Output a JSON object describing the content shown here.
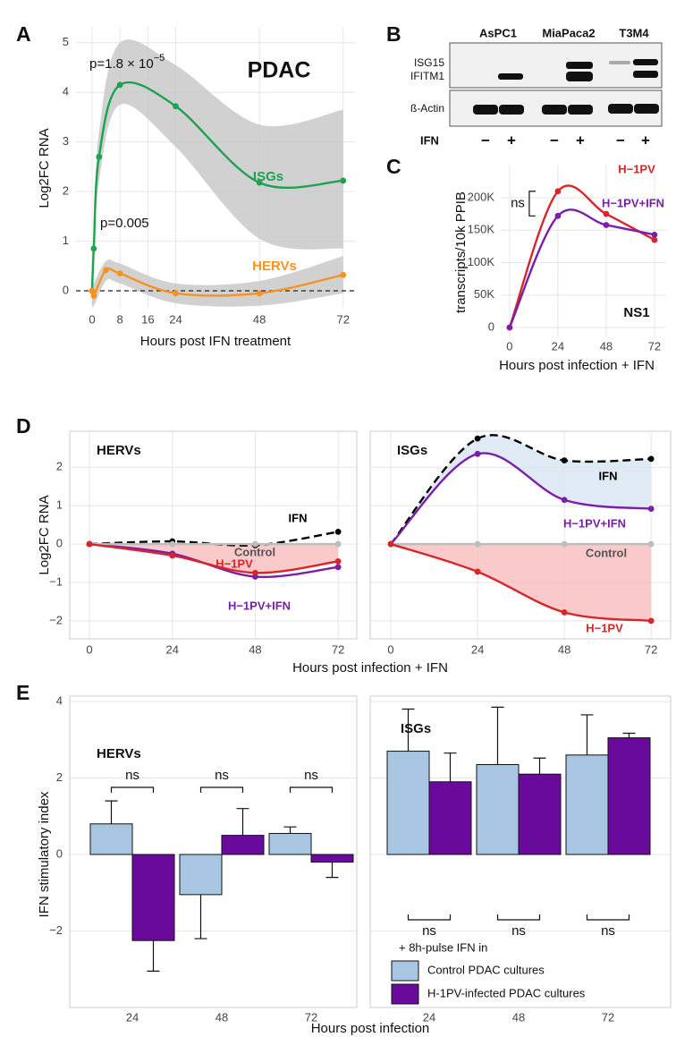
{
  "blot": {
    "panel": "B",
    "cell_lines": [
      "AsPC1",
      "MiaPaca2",
      "T3M4"
    ],
    "proteins": [
      "ISG15",
      "IFITM1"
    ],
    "loading": "ß-Actin",
    "treatment": "IFN",
    "lanes": [
      "−",
      "+",
      "−",
      "+",
      "−",
      "+"
    ]
  },
  "chart_data": [
    {
      "type": "line",
      "panel": "A",
      "title": "PDAC",
      "x_label": "Hours post IFN treatment",
      "y_label": "Log2FC RNA",
      "xlim": [
        -4.6,
        75.4
      ],
      "xticks": [
        0,
        8,
        16,
        24,
        48,
        72
      ],
      "ylim": [
        -0.36,
        5.32
      ],
      "yticks": [
        0,
        1,
        2,
        3,
        4,
        5
      ],
      "hline": 0,
      "grid": true,
      "series": [
        {
          "name": "ISGs",
          "color": "#1ba34f",
          "x": [
            0,
            0.5,
            2,
            8,
            24,
            48,
            72
          ],
          "values": [
            0,
            0.85,
            2.7,
            4.15,
            3.72,
            2.18,
            2.22
          ],
          "lower": [
            -0.1,
            0.45,
            2.2,
            3.75,
            2.9,
            1.05,
            0.85
          ],
          "upper": [
            0.1,
            1.25,
            3.2,
            5.0,
            4.55,
            3.35,
            3.65
          ],
          "annotation": "p=1.8 × 10",
          "annotation_exponent": "−5"
        },
        {
          "name": "HERVs",
          "color": "#f7931e",
          "x": [
            0,
            0.5,
            4,
            8,
            24,
            48,
            72
          ],
          "values": [
            0,
            -0.1,
            0.42,
            0.35,
            -0.05,
            -0.05,
            0.32
          ],
          "lower": [
            -0.15,
            -0.3,
            0.2,
            0.15,
            -0.25,
            -0.3,
            -0.05
          ],
          "upper": [
            0.15,
            0.15,
            0.6,
            0.55,
            0.15,
            0.2,
            0.7
          ],
          "annotation": "p=0.005"
        }
      ]
    },
    {
      "type": "line",
      "panel": "C",
      "title": "NS1",
      "x_label": "Hours post infection + IFN",
      "y_label": "transcripts/10k PPIB",
      "xlim": [
        -4.4,
        77.8
      ],
      "xticks": [
        0,
        24,
        48,
        72
      ],
      "ylim": [
        -13800,
        249700
      ],
      "yticks": [
        0,
        {
          "value": 50000,
          "label": "50K"
        },
        {
          "value": 100000,
          "label": "100K"
        },
        {
          "value": 150000,
          "label": "150K"
        },
        {
          "value": 200000,
          "label": "200K"
        }
      ],
      "grid": true,
      "bracket_label": "ns",
      "x": [
        0,
        24,
        48,
        72
      ],
      "series": [
        {
          "name": "H−1PV",
          "color": "#d7262b",
          "values": [
            0,
            210000,
            175000,
            135000
          ]
        },
        {
          "name": "H−1PV+IFN",
          "color": "#7b1fa8",
          "values": [
            0,
            172000,
            158000,
            143000
          ]
        }
      ]
    },
    {
      "type": "line",
      "panel": "D",
      "title": "HERVs",
      "x_label": "Hours post infection + IFN",
      "y_label": "Log2FC RNA",
      "xlim": [
        -5.7,
        77.4
      ],
      "xticks": [
        0,
        24,
        48,
        72
      ],
      "ylim": [
        -2.47,
        2.94
      ],
      "yticks": [
        {
          "value": -2,
          "label": "−2"
        },
        {
          "value": -1,
          "label": "−1"
        },
        0,
        1,
        2
      ],
      "grid": true,
      "x": [
        0,
        24,
        48,
        72
      ],
      "series": [
        {
          "name": "IFN",
          "color": "#000000",
          "dash": true,
          "values": [
            0,
            0.07,
            -0.03,
            0.32
          ]
        },
        {
          "name": "H−1PV+IFN",
          "color": "#7b1fa8",
          "values": [
            0,
            -0.25,
            -0.85,
            -0.6
          ]
        },
        {
          "name": "Control",
          "color": "#bdbdbd",
          "label_color": "#555555",
          "area_color": "#f9bfc0",
          "values": [
            0,
            0,
            0,
            0
          ]
        },
        {
          "name": "H−1PV",
          "color": "#d7262b",
          "values": [
            0,
            -0.3,
            -0.75,
            -0.45
          ]
        }
      ]
    },
    {
      "type": "line",
      "title": "ISGs",
      "xlim": [
        -5.7,
        77.4
      ],
      "xticks": [
        0,
        24,
        48,
        72
      ],
      "ylim": [
        -2.47,
        2.94
      ],
      "yticks": [
        {
          "value": -2,
          "label": "−2"
        },
        {
          "value": -1,
          "label": "−1"
        },
        0,
        1,
        2
      ],
      "grid": true,
      "x": [
        0,
        24,
        48,
        72
      ],
      "series": [
        {
          "name": "IFN",
          "color": "#000000",
          "dash": true,
          "area_color": "#dbe6f3",
          "values": [
            0,
            2.75,
            2.18,
            2.22
          ]
        },
        {
          "name": "H−1PV+IFN",
          "color": "#7b1fa8",
          "values": [
            0,
            2.35,
            1.15,
            0.92
          ]
        },
        {
          "name": "Control",
          "color": "#bdbdbd",
          "label_color": "#555555",
          "area_color": "#f9bfc0",
          "values": [
            0,
            0,
            0,
            0
          ]
        },
        {
          "name": "H−1PV",
          "color": "#d7262b",
          "values": [
            0,
            -0.72,
            -1.78,
            -2.0
          ]
        }
      ]
    },
    {
      "type": "bar",
      "panel": "E",
      "title": "HERVs",
      "x_label": "Hours post infection",
      "y_label": "IFN stimulatory index",
      "categories": [
        "24",
        "48",
        "72"
      ],
      "ylim": [
        -4.0,
        4.14
      ],
      "yticks": [
        {
          "value": -2,
          "label": "−2"
        },
        0,
        2,
        4
      ],
      "grid": true,
      "comparisons": [
        "ns",
        "ns",
        "ns"
      ],
      "series": [
        {
          "color": "#a8c6e1",
          "values": [
            0.8,
            -1.05,
            0.55
          ],
          "errors": [
            0.6,
            1.15,
            0.17
          ]
        },
        {
          "color": "#6a0a9c",
          "values": [
            -2.25,
            0.5,
            -0.2
          ],
          "errors": [
            0.8,
            0.7,
            0.4
          ]
        }
      ]
    },
    {
      "type": "bar",
      "title": "ISGs",
      "legend_title": "+ 8h-pulse IFN in",
      "categories": [
        "24",
        "48",
        "72"
      ],
      "ylim": [
        -4.0,
        4.14
      ],
      "yticks": [
        {
          "value": -2,
          "label": "−2"
        },
        0,
        2,
        4
      ],
      "grid": true,
      "comparisons": [
        "ns",
        "ns",
        "ns"
      ],
      "series": [
        {
          "name": "Control PDAC cultures",
          "color": "#a8c6e1",
          "values": [
            2.7,
            2.35,
            2.6
          ],
          "errors": [
            1.1,
            1.5,
            1.05
          ]
        },
        {
          "name": "H-1PV-infected PDAC cultures",
          "color": "#6a0a9c",
          "values": [
            1.9,
            2.1,
            3.05
          ],
          "errors": [
            0.75,
            0.42,
            0.12
          ]
        }
      ]
    }
  ]
}
